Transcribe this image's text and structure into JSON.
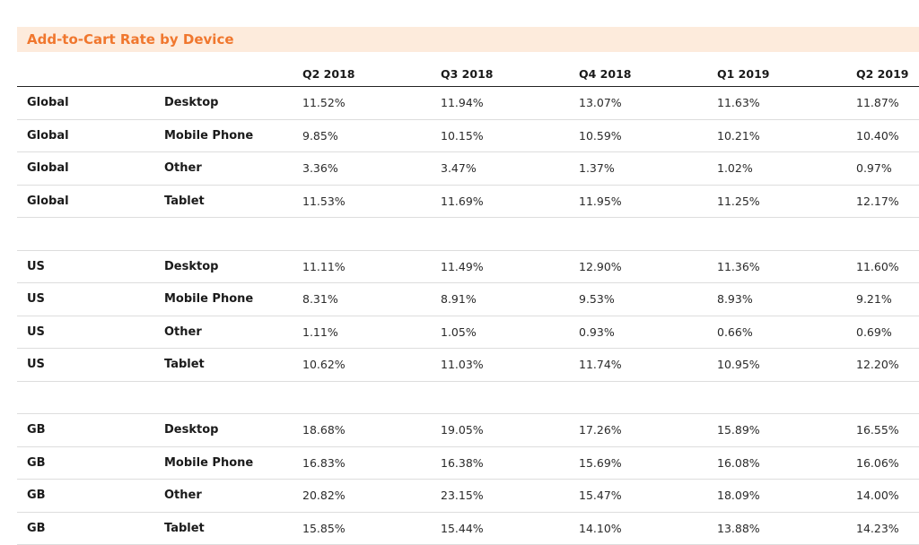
{
  "title": "Add-to-Cart Rate by Device",
  "columns": [
    "Q2 2018",
    "Q3 2018",
    "Q4 2018",
    "Q1 2019",
    "Q2 2019"
  ],
  "groups": [
    {
      "rows": [
        {
          "region": "Global",
          "device": "Desktop",
          "values": [
            "11.52%",
            "11.94%",
            "13.07%",
            "11.63%",
            "11.87%"
          ]
        },
        {
          "region": "Global",
          "device": "Mobile Phone",
          "values": [
            "9.85%",
            "10.15%",
            "10.59%",
            "10.21%",
            "10.40%"
          ]
        },
        {
          "region": "Global",
          "device": "Other",
          "values": [
            "3.36%",
            "3.47%",
            "1.37%",
            "1.02%",
            "0.97%"
          ]
        },
        {
          "region": "Global",
          "device": "Tablet",
          "values": [
            "11.53%",
            "11.69%",
            "11.95%",
            "11.25%",
            "12.17%"
          ]
        }
      ]
    },
    {
      "rows": [
        {
          "region": "US",
          "device": "Desktop",
          "values": [
            "11.11%",
            "11.49%",
            "12.90%",
            "11.36%",
            "11.60%"
          ]
        },
        {
          "region": "US",
          "device": "Mobile Phone",
          "values": [
            "8.31%",
            "8.91%",
            "9.53%",
            "8.93%",
            "9.21%"
          ]
        },
        {
          "region": "US",
          "device": "Other",
          "values": [
            "1.11%",
            "1.05%",
            "0.93%",
            "0.66%",
            "0.69%"
          ]
        },
        {
          "region": "US",
          "device": "Tablet",
          "values": [
            "10.62%",
            "11.03%",
            "11.74%",
            "10.95%",
            "12.20%"
          ]
        }
      ]
    },
    {
      "rows": [
        {
          "region": "GB",
          "device": "Desktop",
          "values": [
            "18.68%",
            "19.05%",
            "17.26%",
            "15.89%",
            "16.55%"
          ]
        },
        {
          "region": "GB",
          "device": "Mobile Phone",
          "values": [
            "16.83%",
            "16.38%",
            "15.69%",
            "16.08%",
            "16.06%"
          ]
        },
        {
          "region": "GB",
          "device": "Other",
          "values": [
            "20.82%",
            "23.15%",
            "15.47%",
            "18.09%",
            "14.00%"
          ]
        },
        {
          "region": "GB",
          "device": "Tablet",
          "values": [
            "15.85%",
            "15.44%",
            "14.10%",
            "13.88%",
            "14.23%"
          ]
        }
      ]
    }
  ],
  "colors": {
    "title_text": "#f0772e",
    "title_background": "#fdebdc",
    "header_rule": "#222222",
    "row_rule": "#dddddd"
  }
}
